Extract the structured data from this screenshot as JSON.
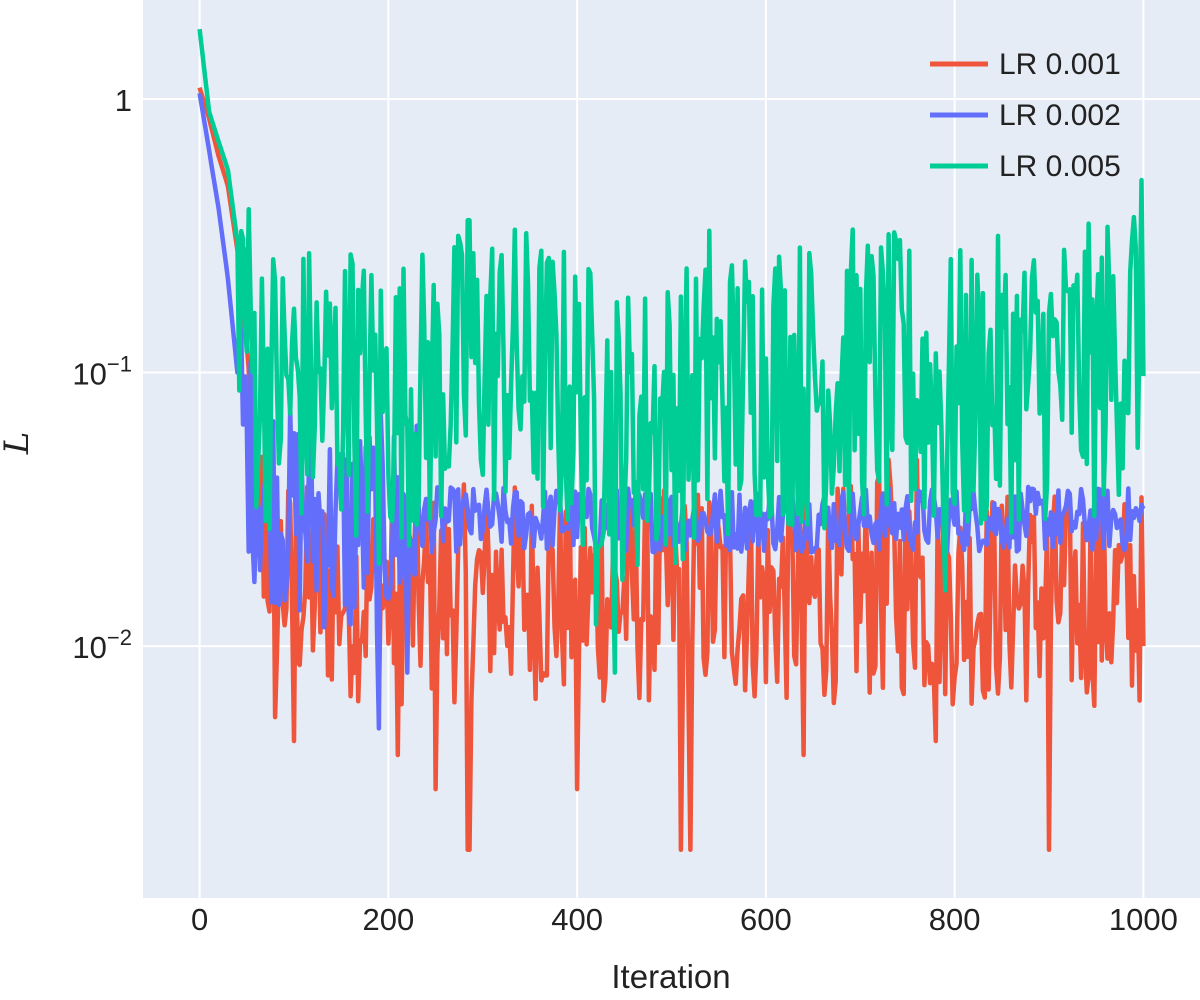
{
  "chart_data": {
    "type": "line",
    "title": "",
    "xlabel": "Iteration",
    "ylabel": "L",
    "x_scale": "linear",
    "y_scale": "log",
    "xlim": [
      -60,
      1060
    ],
    "ylim": [
      0.0012,
      2.3
    ],
    "x_ticks": [
      0,
      200,
      400,
      600,
      800,
      1000
    ],
    "x_tick_labels": [
      "0",
      "200",
      "400",
      "600",
      "800",
      "1000"
    ],
    "y_ticks": [
      1,
      0.1,
      0.01
    ],
    "y_tick_labels": [
      {
        "base": "1",
        "exp": ""
      },
      {
        "base": "10",
        "exp": "−1"
      },
      {
        "base": "10",
        "exp": "−2"
      }
    ],
    "grid": true,
    "legend_position": "top-right",
    "series": [
      {
        "name": "LR 0.001",
        "color": "#EF553B",
        "noisy": true,
        "x": [
          0,
          10,
          20,
          30,
          40,
          50,
          60,
          70,
          80,
          100,
          150,
          200,
          250,
          300,
          350,
          400,
          450,
          500,
          550,
          600,
          650,
          700,
          750,
          800,
          850,
          900,
          950,
          1000
        ],
        "y": [
          1.1,
          0.85,
          0.62,
          0.48,
          0.28,
          0.09,
          0.035,
          0.025,
          0.02,
          0.016,
          0.016,
          0.015,
          0.015,
          0.016,
          0.016,
          0.015,
          0.015,
          0.015,
          0.016,
          0.015,
          0.015,
          0.016,
          0.016,
          0.015,
          0.015,
          0.015,
          0.015,
          0.015
        ],
        "low_spikes": [
          [
            80,
            0.0055
          ],
          [
            100,
            0.0045
          ],
          [
            210,
            0.004
          ],
          [
            250,
            0.003
          ],
          [
            285,
            0.0018
          ],
          [
            400,
            0.003
          ],
          [
            510,
            0.0018
          ],
          [
            520,
            0.0018
          ],
          [
            640,
            0.004
          ],
          [
            780,
            0.0045
          ],
          [
            900,
            0.0018
          ],
          [
            1000,
            0.01
          ]
        ],
        "high_spikes": [
          [
            720,
            0.042
          ],
          [
            730,
            0.048
          ],
          [
            760,
            0.048
          ]
        ]
      },
      {
        "name": "LR 0.002",
        "color": "#636EFA",
        "noisy": true,
        "x": [
          0,
          10,
          20,
          30,
          40,
          50,
          60,
          80,
          100,
          150,
          200,
          250,
          300,
          350,
          400,
          450,
          500,
          550,
          600,
          650,
          700,
          750,
          800,
          850,
          900,
          950,
          1000
        ],
        "y": [
          1.05,
          0.65,
          0.4,
          0.22,
          0.1,
          0.055,
          0.04,
          0.035,
          0.03,
          0.027,
          0.028,
          0.029,
          0.029,
          0.029,
          0.029,
          0.029,
          0.029,
          0.029,
          0.029,
          0.029,
          0.029,
          0.029,
          0.029,
          0.029,
          0.029,
          0.029,
          0.029
        ],
        "low_spikes": [
          [
            160,
            0.012
          ],
          [
            190,
            0.005
          ],
          [
            220,
            0.008
          ]
        ],
        "high_spikes": [
          [
            100,
            0.06
          ]
        ]
      },
      {
        "name": "LR 0.005",
        "color": "#00CC96",
        "noisy": true,
        "x": [
          0,
          10,
          20,
          30,
          40,
          50,
          60,
          80,
          100,
          150,
          200,
          250,
          300,
          350,
          400,
          450,
          500,
          550,
          600,
          650,
          700,
          750,
          800,
          850,
          900,
          950,
          1000
        ],
        "y": [
          1.8,
          0.9,
          0.7,
          0.55,
          0.3,
          0.15,
          0.1,
          0.09,
          0.09,
          0.085,
          0.08,
          0.085,
          0.11,
          0.1,
          0.08,
          0.06,
          0.07,
          0.08,
          0.1,
          0.09,
          0.1,
          0.09,
          0.08,
          0.09,
          0.1,
          0.1,
          0.15
        ],
        "low_spikes": [
          [
            190,
            0.02
          ],
          [
            420,
            0.012
          ],
          [
            440,
            0.008
          ],
          [
            790,
            0.016
          ]
        ],
        "high_spikes": [
          [
            160,
            0.27
          ],
          [
            285,
            0.36
          ],
          [
            540,
            0.33
          ],
          [
            610,
            0.24
          ],
          [
            740,
            0.26
          ],
          [
            990,
            0.37
          ]
        ]
      }
    ]
  }
}
